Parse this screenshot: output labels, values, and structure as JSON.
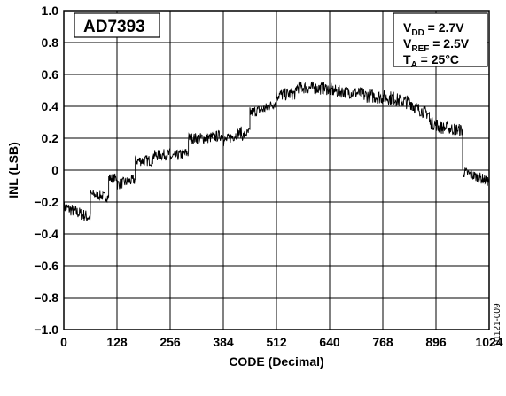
{
  "chart_data": {
    "type": "line",
    "title": "",
    "xlabel": "CODE (Decimal)",
    "ylabel": "INL (LSB)",
    "xlim": [
      0,
      1024
    ],
    "ylim": [
      -1.0,
      1.0
    ],
    "x_ticks": [
      0,
      128,
      256,
      384,
      512,
      640,
      768,
      896,
      1024
    ],
    "x_tick_labels": [
      "0",
      "128",
      "256",
      "384",
      "512",
      "640",
      "768",
      "896",
      "1024"
    ],
    "y_ticks": [
      1.0,
      0.8,
      0.6,
      0.4,
      0.2,
      0,
      -0.2,
      -0.4,
      -0.6,
      -0.8,
      -1.0
    ],
    "y_tick_labels": [
      "1.0",
      "0.8",
      "0.6",
      "0.4",
      "0.2",
      "0",
      "−0.2",
      "−0.4",
      "−0.6",
      "−0.8",
      "−1.0"
    ],
    "grid": true,
    "series": [
      {
        "segments": [
          {
            "x": [
              0,
              64
            ],
            "y": [
              -0.23,
              -0.3
            ],
            "noise": 0.04
          },
          {
            "x": [
              64,
              108
            ],
            "y": [
              -0.15,
              -0.17
            ],
            "noise": 0.03
          },
          {
            "x": [
              108,
              128
            ],
            "y": [
              -0.05,
              -0.05
            ],
            "noise": 0.03
          },
          {
            "x": [
              128,
              172
            ],
            "y": [
              -0.09,
              -0.06
            ],
            "noise": 0.035
          },
          {
            "x": [
              172,
              214
            ],
            "y": [
              0.06,
              0.06
            ],
            "noise": 0.035
          },
          {
            "x": [
              214,
              256
            ],
            "y": [
              0.09,
              0.1
            ],
            "noise": 0.035
          },
          {
            "x": [
              256,
              300
            ],
            "y": [
              0.08,
              0.11
            ],
            "noise": 0.035
          },
          {
            "x": [
              300,
              344
            ],
            "y": [
              0.2,
              0.2
            ],
            "noise": 0.035
          },
          {
            "x": [
              344,
              384
            ],
            "y": [
              0.2,
              0.22
            ],
            "noise": 0.035
          },
          {
            "x": [
              384,
              428
            ],
            "y": [
              0.18,
              0.24
            ],
            "noise": 0.035
          },
          {
            "x": [
              428,
              448
            ],
            "y": [
              0.21,
              0.24
            ],
            "noise": 0.03
          },
          {
            "x": [
              448,
              490
            ],
            "y": [
              0.36,
              0.39
            ],
            "noise": 0.035
          },
          {
            "x": [
              490,
              512
            ],
            "y": [
              0.4,
              0.42
            ],
            "noise": 0.03
          },
          {
            "x": [
              512,
              560
            ],
            "y": [
              0.47,
              0.48
            ],
            "noise": 0.04
          },
          {
            "x": [
              560,
              640
            ],
            "y": [
              0.52,
              0.51
            ],
            "noise": 0.04
          },
          {
            "x": [
              640,
              720
            ],
            "y": [
              0.5,
              0.48
            ],
            "noise": 0.04
          },
          {
            "x": [
              720,
              800
            ],
            "y": [
              0.47,
              0.45
            ],
            "noise": 0.045
          },
          {
            "x": [
              800,
              840
            ],
            "y": [
              0.44,
              0.42
            ],
            "noise": 0.045
          },
          {
            "x": [
              840,
              880
            ],
            "y": [
              0.4,
              0.35
            ],
            "noise": 0.04
          },
          {
            "x": [
              880,
              900
            ],
            "y": [
              0.3,
              0.28
            ],
            "noise": 0.04
          },
          {
            "x": [
              900,
              960
            ],
            "y": [
              0.27,
              0.25
            ],
            "noise": 0.04
          },
          {
            "x": [
              960,
              1024
            ],
            "y": [
              -0.01,
              -0.07
            ],
            "noise": 0.035
          }
        ]
      }
    ],
    "annotations": {
      "device_label": "AD7393",
      "conditions": [
        {
          "main": "V",
          "sub": "DD",
          "rest": " = 2.7V"
        },
        {
          "main": "V",
          "sub": "REF",
          "rest": " = 2.5V"
        },
        {
          "main": "T",
          "sub": "A",
          "rest": " = 25°C"
        }
      ]
    },
    "figure_id": "01121-009",
    "colors": {
      "line": "#000000",
      "grid": "#000000",
      "background": "#ffffff"
    }
  }
}
